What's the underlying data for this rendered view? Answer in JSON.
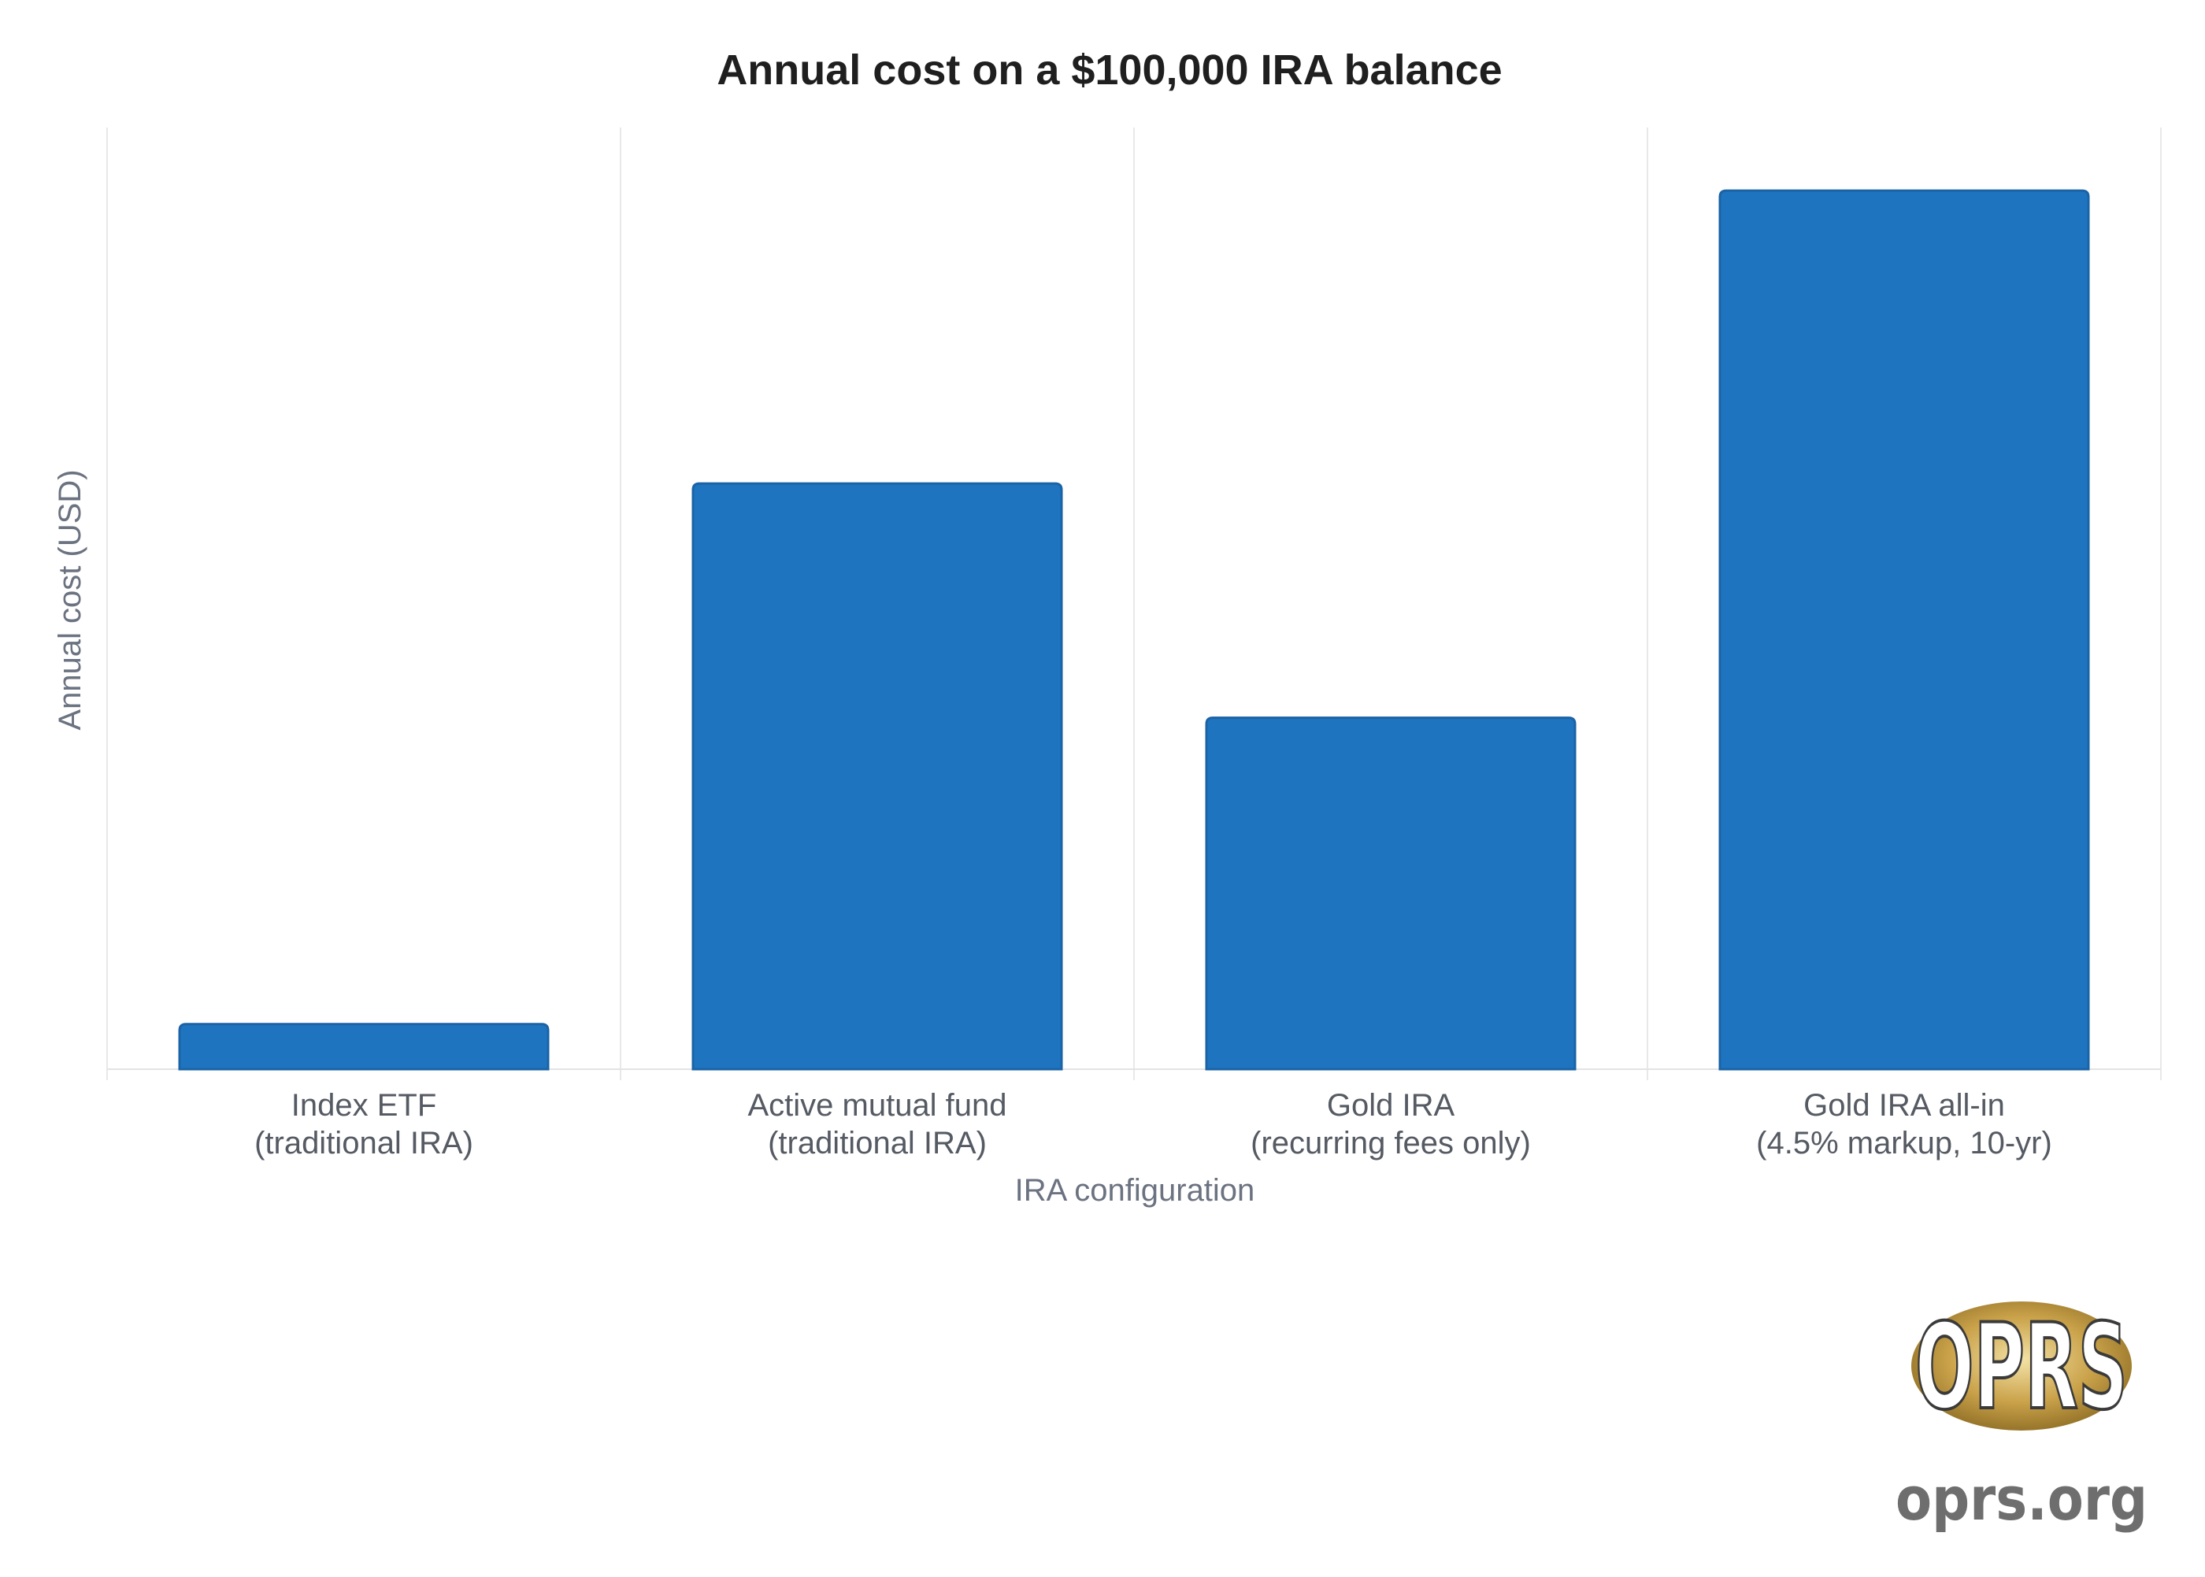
{
  "chart_data": {
    "type": "bar",
    "title": "Annual cost on a $100,000 IRA balance",
    "xlabel": "IRA configuration",
    "ylabel": "Annual cost (USD)",
    "categories": [
      [
        "Index ETF",
        "(traditional IRA)"
      ],
      [
        "Active mutual fund",
        "(traditional IRA)"
      ],
      [
        "Gold IRA",
        "(recurring fees only)"
      ],
      [
        "Gold IRA all-in",
        "(4.5% markup, 10-yr)"
      ]
    ],
    "values": [
      50,
      650,
      390,
      975
    ],
    "ylim": [
      0,
      1045
    ],
    "grid": "vertical",
    "bar_color": "#1f74bf",
    "bar_edge_color": "#1a63a6"
  },
  "branding": {
    "logo_text": "OPRS",
    "site": "oprs.org",
    "logo_gold": "#c9a443"
  }
}
